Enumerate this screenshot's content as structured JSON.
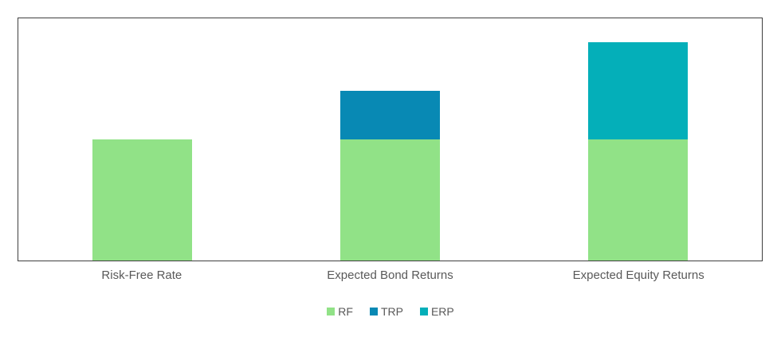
{
  "chart_data": {
    "type": "bar",
    "stacked": true,
    "title": "",
    "categories": [
      "Risk-Free Rate",
      "Expected Bond Returns",
      "Expected Equity Returns"
    ],
    "series": [
      {
        "name": "RF",
        "color": "#91E287",
        "values": [
          2.5,
          2.5,
          2.5
        ]
      },
      {
        "name": "TRP",
        "color": "#0889B4",
        "values": [
          0,
          1.0,
          0
        ]
      },
      {
        "name": "ERP",
        "color": "#04AFB9",
        "values": [
          0,
          0,
          2.0
        ]
      }
    ],
    "totals": [
      2.5,
      3.5,
      4.5
    ],
    "xlabel": "",
    "ylabel": "",
    "ylim": [
      0,
      5
    ],
    "grid": false,
    "y_axis_visible": false,
    "data_labels_visible": false,
    "legend_position": "bottom"
  },
  "style_colors": {
    "plot_border": "#3F3F3F",
    "label_text": "#595959",
    "background": "#FFFFFF"
  }
}
